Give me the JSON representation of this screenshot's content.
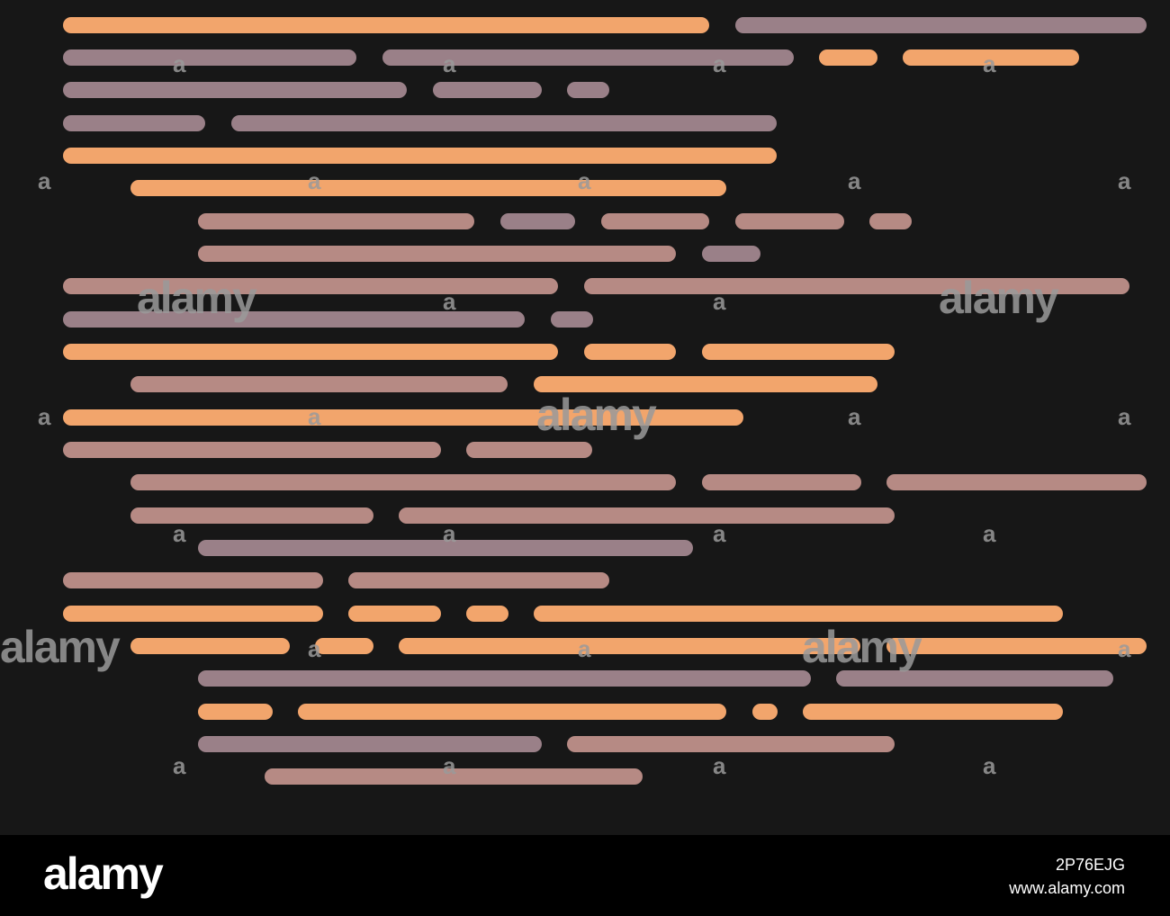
{
  "colors": {
    "background": "#171717",
    "orange": "#f2a56c",
    "mauve": "#9a8088",
    "rose": "#b68a84",
    "footer": "#000000"
  },
  "watermark": {
    "brand": "alamy",
    "mark": "a"
  },
  "footer": {
    "logo": "alamy",
    "image_id": "2P76EJG",
    "site": "www.alamy.com"
  }
}
